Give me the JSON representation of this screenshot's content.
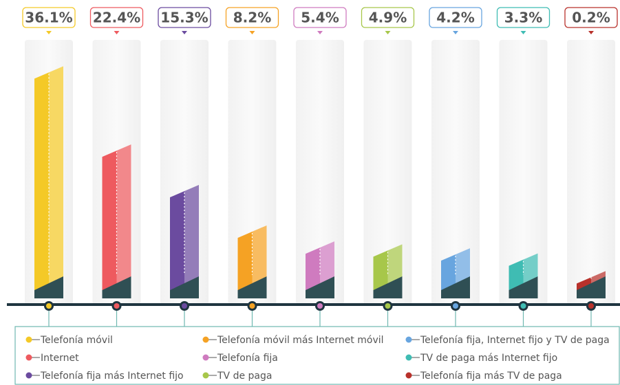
{
  "chart_data": {
    "type": "bar",
    "categories": [
      "Telefonía móvil",
      "Internet",
      "Telefonía fija más Internet fijo",
      "Telefonía móvil más Internet móvil",
      "Telefonía fija",
      "TV de paga",
      "Telefonía fija, Internet fijo y TV de paga",
      "TV de paga más Internet fijo",
      "Telefonía fija más TV de paga"
    ],
    "values": [
      36.1,
      22.4,
      15.3,
      8.2,
      5.4,
      4.9,
      4.2,
      3.3,
      0.2
    ],
    "value_labels": [
      "36.1%",
      "22.4%",
      "15.3%",
      "8.2%",
      "5.4%",
      "4.9%",
      "4.2%",
      "3.3%",
      "0.2%"
    ],
    "colors": [
      "#f4c927",
      "#ee5a5f",
      "#6b4b9f",
      "#f5a224",
      "#cf7bbf",
      "#a7c74a",
      "#68a5df",
      "#3fbcb3",
      "#b8312b"
    ],
    "legend": "bottom"
  }
}
